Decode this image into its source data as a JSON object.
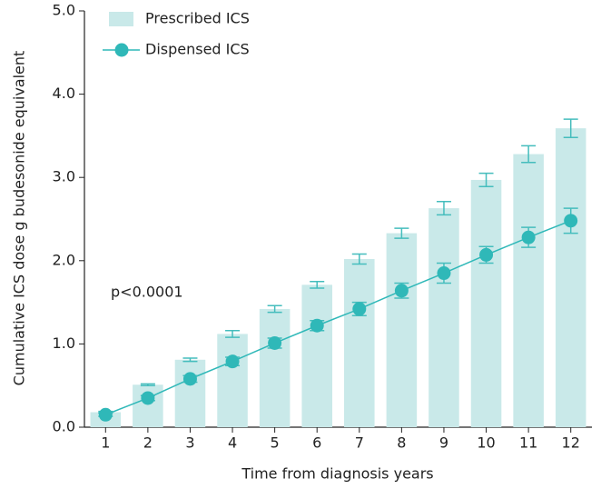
{
  "chart_data": {
    "type": "bar",
    "x_label": "Time from diagnosis years",
    "y_label": "Cumulative ICS dose g budesonide equivalent",
    "annotation": "p<0.0001",
    "categories": [
      "1",
      "2",
      "3",
      "4",
      "5",
      "6",
      "7",
      "8",
      "9",
      "10",
      "11",
      "12"
    ],
    "series": [
      {
        "name": "Prescribed ICS",
        "type": "bar",
        "color": "#c9e9e9",
        "error_color": "#45bdbd",
        "values": [
          0.18,
          0.51,
          0.81,
          1.12,
          1.42,
          1.71,
          2.02,
          2.33,
          2.63,
          2.97,
          3.28,
          3.59
        ],
        "errors": [
          0.01,
          0.01,
          0.02,
          0.04,
          0.04,
          0.04,
          0.06,
          0.06,
          0.08,
          0.08,
          0.1,
          0.11
        ]
      },
      {
        "name": "Dispensed ICS",
        "type": "line",
        "color": "#2fb8b8",
        "error_color": "#45bdbd",
        "values": [
          0.15,
          0.35,
          0.58,
          0.79,
          1.01,
          1.22,
          1.42,
          1.64,
          1.85,
          2.07,
          2.28,
          2.48
        ],
        "errors": [
          0.02,
          0.03,
          0.04,
          0.05,
          0.06,
          0.06,
          0.08,
          0.09,
          0.12,
          0.1,
          0.12,
          0.15
        ]
      }
    ],
    "ylim": [
      0,
      5
    ],
    "yticks": [
      {
        "value": 0,
        "label": "0.0"
      },
      {
        "value": 1,
        "label": "1.0"
      },
      {
        "value": 2,
        "label": "2.0"
      },
      {
        "value": 3,
        "label": "3.0"
      },
      {
        "value": 4,
        "label": "4.0"
      },
      {
        "value": 5,
        "label": "5.0"
      }
    ],
    "grid": false,
    "legend": "top-left"
  }
}
